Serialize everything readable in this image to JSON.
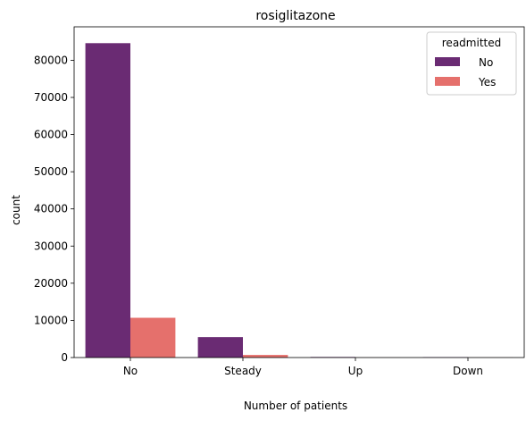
{
  "chart_data": {
    "type": "bar",
    "title": "rosiglitazone",
    "xlabel": "Number of patients",
    "ylabel": "count",
    "categories": [
      "No",
      "Steady",
      "Up",
      "Down"
    ],
    "series": [
      {
        "name": "No",
        "color": "#6a2b73",
        "values": [
          84600,
          5500,
          150,
          100
        ]
      },
      {
        "name": "Yes",
        "color": "#e5706c",
        "values": [
          10700,
          700,
          20,
          20
        ]
      }
    ],
    "ylim": [
      0,
      89000
    ],
    "yticks": [
      0,
      10000,
      20000,
      30000,
      40000,
      50000,
      60000,
      70000,
      80000
    ],
    "legend": {
      "title": "readmitted",
      "placement": "top-right"
    },
    "grid": false
  }
}
